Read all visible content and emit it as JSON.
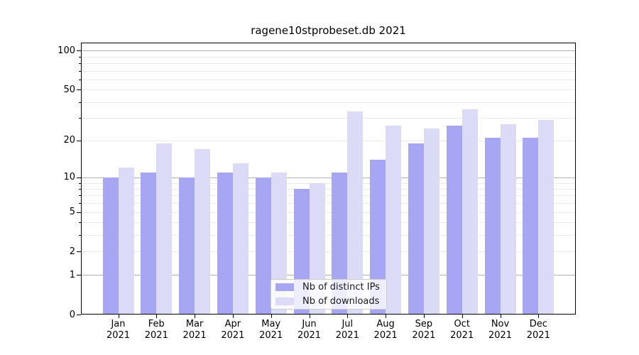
{
  "title": "ragene10stprobeset.db 2021",
  "chart_data": {
    "type": "bar",
    "title": "ragene10stprobeset.db 2021",
    "categories": [
      "Jan 2021",
      "Feb 2021",
      "Mar 2021",
      "Apr 2021",
      "May 2021",
      "Jun 2021",
      "Jul 2021",
      "Aug 2021",
      "Sep 2021",
      "Oct 2021",
      "Nov 2021",
      "Dec 2021"
    ],
    "months": [
      "Jan",
      "Feb",
      "Mar",
      "Apr",
      "May",
      "Jun",
      "Jul",
      "Aug",
      "Sep",
      "Oct",
      "Nov",
      "Dec"
    ],
    "year": "2021",
    "series": [
      {
        "name": "Nb of distinct IPs",
        "color": "#a6a6f2",
        "values": [
          10,
          11,
          10,
          11,
          10,
          8,
          11,
          14,
          19,
          26,
          21,
          21
        ]
      },
      {
        "name": "Nb of downloads",
        "color": "#dbdbf8",
        "values": [
          12,
          19,
          17,
          13,
          11,
          9,
          34,
          26,
          25,
          35,
          27,
          29
        ]
      }
    ],
    "yscale": "log1p",
    "yticks": [
      0,
      1,
      2,
      5,
      10,
      20,
      50,
      100
    ],
    "minor_yticks": [
      3,
      4,
      6,
      7,
      8,
      9,
      30,
      40,
      60,
      70,
      80,
      90
    ],
    "decade_ticks": [
      1,
      10,
      100
    ],
    "ylim": [
      0,
      115
    ],
    "grid": true,
    "legend_position": "lower-center",
    "colors": {
      "major_grid": "#b0b0b0",
      "minor_grid": "#ebebeb",
      "frame": "#000000",
      "text": "#000000"
    }
  }
}
